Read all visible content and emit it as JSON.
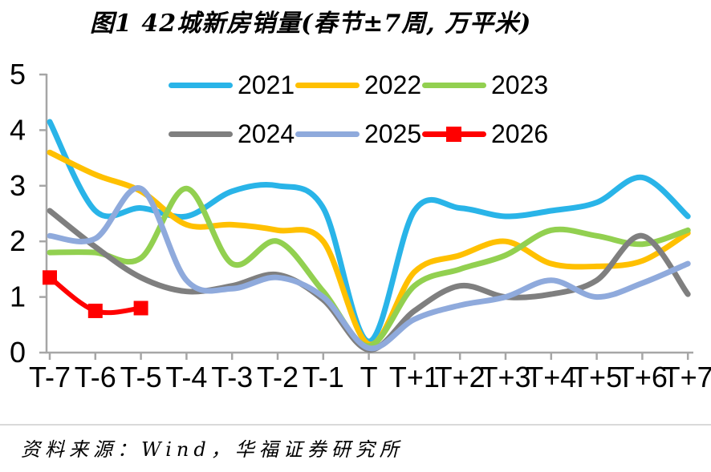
{
  "page": {
    "title": "图1 42城新房销量(春节±7周, 万平米)",
    "source": "资料来源：Wind，华福证券研究所"
  },
  "chart_data": {
    "type": "line",
    "title": "图1 42城新房销量(春节±7周, 万平米)",
    "unit": "万平米",
    "categories": [
      "T-7",
      "T-6",
      "T-5",
      "T-4",
      "T-3",
      "T-2",
      "T-1",
      "T",
      "T+1",
      "T+2",
      "T+3",
      "T+4",
      "T+5",
      "T+6",
      "T+7"
    ],
    "ylim": [
      0,
      5
    ],
    "yticks": [
      0,
      1,
      2,
      3,
      4,
      5
    ],
    "grid": false,
    "legend_position": "top-inside",
    "axis_color": "#A6A6A6",
    "text_color": "#000000",
    "series": [
      {
        "name": "2021",
        "color": "#29B4E8",
        "marker": "none",
        "values": [
          4.15,
          2.55,
          2.6,
          2.45,
          2.9,
          3.0,
          2.6,
          0.2,
          2.55,
          2.6,
          2.45,
          2.55,
          2.7,
          3.15,
          2.45
        ]
      },
      {
        "name": "2022",
        "color": "#FFC000",
        "marker": "none",
        "values": [
          3.6,
          3.2,
          2.9,
          2.3,
          2.3,
          2.2,
          2.0,
          0.15,
          1.45,
          1.75,
          2.0,
          1.6,
          1.55,
          1.65,
          2.15
        ]
      },
      {
        "name": "2023",
        "color": "#92D050",
        "marker": "none",
        "values": [
          1.8,
          1.8,
          1.7,
          2.95,
          1.6,
          2.0,
          1.1,
          0.12,
          1.2,
          1.5,
          1.75,
          2.2,
          2.1,
          1.95,
          2.2
        ]
      },
      {
        "name": "2024",
        "color": "#7F7F7F",
        "marker": "none",
        "values": [
          2.55,
          1.9,
          1.35,
          1.1,
          1.2,
          1.4,
          0.95,
          0.05,
          0.75,
          1.2,
          1.0,
          1.05,
          1.3,
          2.1,
          1.05
        ]
      },
      {
        "name": "2025",
        "color": "#8FAADC",
        "marker": "none",
        "values": [
          2.1,
          2.05,
          2.95,
          1.3,
          1.15,
          1.35,
          1.0,
          0.08,
          0.6,
          0.85,
          1.0,
          1.3,
          1.0,
          1.25,
          1.6
        ]
      },
      {
        "name": "2026",
        "color": "#FF0000",
        "marker": "square",
        "values": [
          1.35,
          0.75,
          0.8
        ]
      }
    ]
  }
}
